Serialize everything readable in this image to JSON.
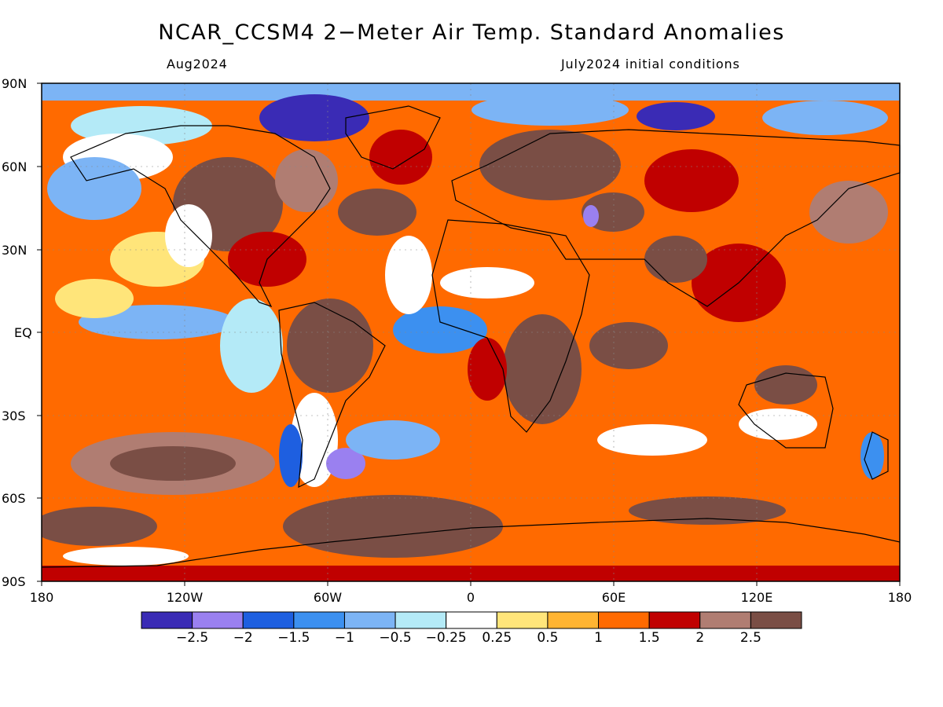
{
  "header": {
    "title": "NCAR_CCSM4 2−Meter Air Temp. Standard Anomalies",
    "valid_month": "Aug2024",
    "init_conditions": "July2024 initial conditions"
  },
  "axes": {
    "lat_labels": [
      "90N",
      "60N",
      "30N",
      "EQ",
      "30S",
      "60S",
      "90S"
    ],
    "lon_labels": [
      "180",
      "120W",
      "60W",
      "0",
      "60E",
      "120E",
      "180"
    ]
  },
  "colorbar": {
    "colors": [
      "#3a2bb5",
      "#9a80f0",
      "#1e5fe0",
      "#3c90f0",
      "#7cb4f5",
      "#b4eaf7",
      "#ffffff",
      "#ffe57a",
      "#ffb432",
      "#ff6a00",
      "#c00000",
      "#b07d72",
      "#7a4e45"
    ],
    "labels": [
      "−2.5",
      "−2",
      "−1.5",
      "−1",
      "−0.5",
      "−0.25",
      "0.25",
      "0.5",
      "1",
      "1.5",
      "2",
      "2.5"
    ]
  }
}
